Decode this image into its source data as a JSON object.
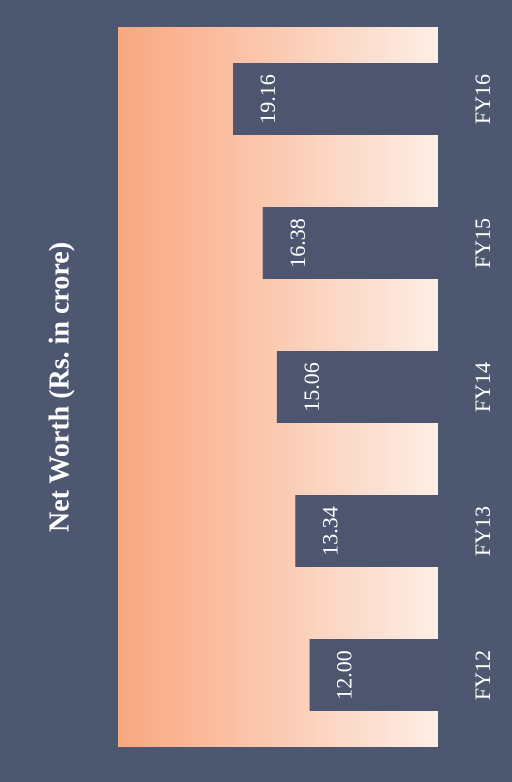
{
  "chart_data": {
    "type": "bar",
    "title": "Net Worth (Rs. in crore)",
    "categories": [
      "FY12",
      "FY13",
      "FY14",
      "FY15",
      "FY16"
    ],
    "values": [
      12.0,
      13.34,
      15.06,
      16.38,
      19.16
    ],
    "value_labels": [
      "12.00",
      "13.34",
      "15.06",
      "16.38",
      "19.16"
    ],
    "color": "#4d566e"
  }
}
